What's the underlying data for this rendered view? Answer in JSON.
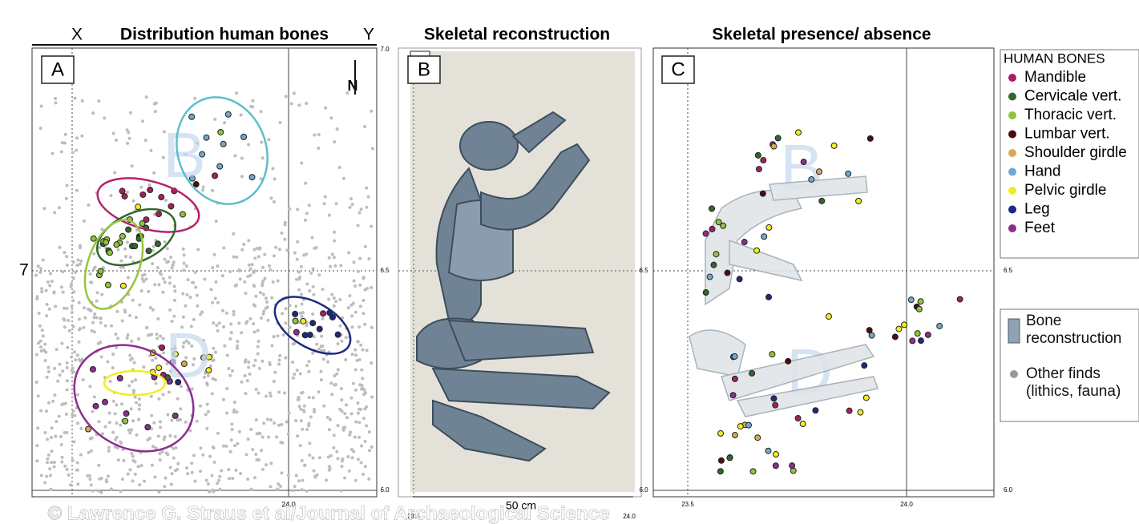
{
  "panels": [
    {
      "letter": "A",
      "title": "Distribution human bones",
      "x_label": "X",
      "y_label": "Y",
      "north": "N",
      "zones": [
        "B",
        "D"
      ],
      "y_mark": "7",
      "small_ticks": [
        "7.0",
        "6.5",
        "6.0",
        "24.0"
      ]
    },
    {
      "letter": "B",
      "title": "Skeletal reconstruction",
      "scale": "50 cm",
      "small_ticks": [
        "23.5",
        "24.0"
      ]
    },
    {
      "letter": "C",
      "title": "Skeletal presence/ absence",
      "zones": [
        "B",
        "D"
      ],
      "small_ticks": [
        "6.5",
        "6.0",
        "23.5",
        "24.0",
        "6.5",
        "6.0"
      ]
    }
  ],
  "legend": {
    "title": "HUMAN BONES",
    "items": [
      {
        "label": "Mandible",
        "color": "#a3215f"
      },
      {
        "label": "Cervicale vert.",
        "color": "#2f6a2c"
      },
      {
        "label": "Thoracic vert.",
        "color": "#8fc43c"
      },
      {
        "label": "Lumbar vert.",
        "color": "#4b0d0f"
      },
      {
        "label": "Shoulder girdle",
        "color": "#d6aa55"
      },
      {
        "label": "Hand",
        "color": "#6fa9cf"
      },
      {
        "label": "Pelvic girdle",
        "color": "#f2ee1c"
      },
      {
        "label": "Leg",
        "color": "#1d2a7e"
      },
      {
        "label": "Feet",
        "color": "#8b2f8c"
      }
    ]
  },
  "legend2": {
    "items": [
      "Bone reconstruction",
      "Other finds (lithics, fauna)"
    ]
  },
  "credit": "© Lawrence G. Straus et al/Journal of Archaeological Science"
}
